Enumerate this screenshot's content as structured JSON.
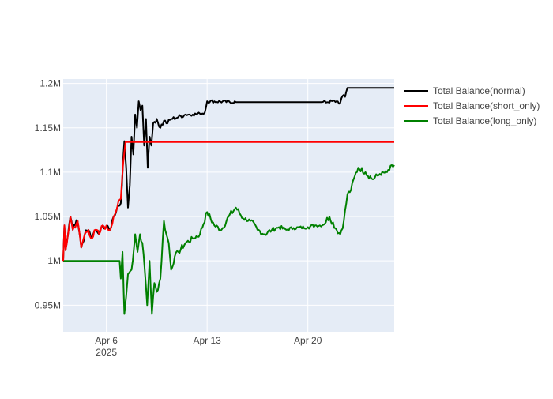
{
  "chart_data": {
    "type": "line",
    "title": "",
    "xlabel": "",
    "ylabel": "",
    "x_range": [
      "2025-04-03",
      "2025-04-26"
    ],
    "ylim": [
      920000,
      1205000
    ],
    "y_ticks": [
      {
        "value": 950000,
        "label": "0.95M"
      },
      {
        "value": 1000000,
        "label": "1M"
      },
      {
        "value": 1050000,
        "label": "1.05M"
      },
      {
        "value": 1100000,
        "label": "1.1M"
      },
      {
        "value": 1150000,
        "label": "1.15M"
      },
      {
        "value": 1200000,
        "label": "1.2M"
      }
    ],
    "x_ticks": [
      {
        "value": "2025-04-06",
        "label": "Apr 6",
        "sublabel": "2025"
      },
      {
        "value": "2025-04-13",
        "label": "Apr 13",
        "sublabel": ""
      },
      {
        "value": "2025-04-20",
        "label": "Apr 20",
        "sublabel": ""
      }
    ],
    "grid": true,
    "legend_position": "right",
    "colors": {
      "plot_bg": "#E5ECF6",
      "grid": "#ffffff",
      "tick_text": "#444444"
    },
    "series": [
      {
        "name": "Total Balance(normal)",
        "color": "#000000",
        "points": [
          [
            "2025-04-03 00:00",
            1000000
          ],
          [
            "2025-04-03 02:00",
            1040000
          ],
          [
            "2025-04-03 04:00",
            1012000
          ],
          [
            "2025-04-03 08:00",
            1030000
          ],
          [
            "2025-04-03 12:00",
            1050000
          ],
          [
            "2025-04-03 16:00",
            1035000
          ],
          [
            "2025-04-04 00:00",
            1045000
          ],
          [
            "2025-04-04 06:00",
            1015000
          ],
          [
            "2025-04-04 12:00",
            1030000
          ],
          [
            "2025-04-04 18:00",
            1035000
          ],
          [
            "2025-04-05 00:00",
            1025000
          ],
          [
            "2025-04-05 06:00",
            1035000
          ],
          [
            "2025-04-05 12:00",
            1030000
          ],
          [
            "2025-04-05 18:00",
            1040000
          ],
          [
            "2025-04-06 06:00",
            1035000
          ],
          [
            "2025-04-06 12:00",
            1050000
          ],
          [
            "2025-04-06 18:00",
            1060000
          ],
          [
            "2025-04-07 00:00",
            1065000
          ],
          [
            "2025-04-07 06:00",
            1135000
          ],
          [
            "2025-04-07 09:00",
            1105000
          ],
          [
            "2025-04-07 12:00",
            1060000
          ],
          [
            "2025-04-07 15:00",
            1085000
          ],
          [
            "2025-04-07 18:00",
            1140000
          ],
          [
            "2025-04-07 21:00",
            1120000
          ],
          [
            "2025-04-08 00:00",
            1165000
          ],
          [
            "2025-04-08 03:00",
            1150000
          ],
          [
            "2025-04-08 06:00",
            1180000
          ],
          [
            "2025-04-08 09:00",
            1170000
          ],
          [
            "2025-04-08 12:00",
            1175000
          ],
          [
            "2025-04-08 15:00",
            1130000
          ],
          [
            "2025-04-08 18:00",
            1160000
          ],
          [
            "2025-04-08 21:00",
            1105000
          ],
          [
            "2025-04-09 00:00",
            1140000
          ],
          [
            "2025-04-09 03:00",
            1130000
          ],
          [
            "2025-04-09 06:00",
            1155000
          ],
          [
            "2025-04-09 12:00",
            1160000
          ],
          [
            "2025-04-09 18:00",
            1150000
          ],
          [
            "2025-04-10 00:00",
            1158000
          ],
          [
            "2025-04-10 06:00",
            1155000
          ],
          [
            "2025-04-10 12:00",
            1160000
          ],
          [
            "2025-04-11 00:00",
            1162000
          ],
          [
            "2025-04-11 12:00",
            1165000
          ],
          [
            "2025-04-12 00:00",
            1165000
          ],
          [
            "2025-04-12 12:00",
            1166000
          ],
          [
            "2025-04-12 20:00",
            1167000
          ],
          [
            "2025-04-13 00:00",
            1180000
          ],
          [
            "2025-04-15 00:00",
            1179000
          ],
          [
            "2025-04-18 00:00",
            1179000
          ],
          [
            "2025-04-21 00:00",
            1179000
          ],
          [
            "2025-04-22 00:00",
            1180000
          ],
          [
            "2025-04-22 06:00",
            1178000
          ],
          [
            "2025-04-22 10:00",
            1186000
          ],
          [
            "2025-04-22 14:00",
            1185000
          ],
          [
            "2025-04-22 18:00",
            1195000
          ],
          [
            "2025-04-26 00:00",
            1195000
          ]
        ]
      },
      {
        "name": "Total Balance(short_only)",
        "color": "#ff0000",
        "points": [
          [
            "2025-04-03 00:00",
            1000000
          ],
          [
            "2025-04-03 02:00",
            1040000
          ],
          [
            "2025-04-03 04:00",
            1012000
          ],
          [
            "2025-04-03 08:00",
            1030000
          ],
          [
            "2025-04-03 12:00",
            1050000
          ],
          [
            "2025-04-03 16:00",
            1035000
          ],
          [
            "2025-04-04 00:00",
            1045000
          ],
          [
            "2025-04-04 06:00",
            1015000
          ],
          [
            "2025-04-04 12:00",
            1030000
          ],
          [
            "2025-04-04 18:00",
            1035000
          ],
          [
            "2025-04-05 00:00",
            1025000
          ],
          [
            "2025-04-05 06:00",
            1035000
          ],
          [
            "2025-04-05 12:00",
            1030000
          ],
          [
            "2025-04-05 18:00",
            1040000
          ],
          [
            "2025-04-06 06:00",
            1035000
          ],
          [
            "2025-04-06 12:00",
            1050000
          ],
          [
            "2025-04-06 18:00",
            1060000
          ],
          [
            "2025-04-07 00:00",
            1070000
          ],
          [
            "2025-04-07 04:00",
            1110000
          ],
          [
            "2025-04-07 08:00",
            1134000
          ],
          [
            "2025-04-26 00:00",
            1134000
          ]
        ]
      },
      {
        "name": "Total Balance(long_only)",
        "color": "#008000",
        "points": [
          [
            "2025-04-03 00:00",
            1000000
          ],
          [
            "2025-04-06 22:00",
            1000000
          ],
          [
            "2025-04-07 00:00",
            980000
          ],
          [
            "2025-04-07 03:00",
            1010000
          ],
          [
            "2025-04-07 06:00",
            940000
          ],
          [
            "2025-04-07 09:00",
            960000
          ],
          [
            "2025-04-07 12:00",
            985000
          ],
          [
            "2025-04-07 18:00",
            990000
          ],
          [
            "2025-04-08 00:00",
            1030000
          ],
          [
            "2025-04-08 04:00",
            1010000
          ],
          [
            "2025-04-08 08:00",
            1030000
          ],
          [
            "2025-04-08 12:00",
            1020000
          ],
          [
            "2025-04-08 16:00",
            990000
          ],
          [
            "2025-04-08 20:00",
            950000
          ],
          [
            "2025-04-09 00:00",
            1000000
          ],
          [
            "2025-04-09 04:00",
            940000
          ],
          [
            "2025-04-09 08:00",
            975000
          ],
          [
            "2025-04-09 12:00",
            965000
          ],
          [
            "2025-04-09 18:00",
            980000
          ],
          [
            "2025-04-10 00:00",
            1045000
          ],
          [
            "2025-04-10 04:00",
            1030000
          ],
          [
            "2025-04-10 08:00",
            1020000
          ],
          [
            "2025-04-10 12:00",
            990000
          ],
          [
            "2025-04-10 18:00",
            1005000
          ],
          [
            "2025-04-11 00:00",
            1010000
          ],
          [
            "2025-04-11 12:00",
            1020000
          ],
          [
            "2025-04-12 00:00",
            1025000
          ],
          [
            "2025-04-12 12:00",
            1030000
          ],
          [
            "2025-04-13 00:00",
            1055000
          ],
          [
            "2025-04-13 12:00",
            1040000
          ],
          [
            "2025-04-14 00:00",
            1035000
          ],
          [
            "2025-04-14 12:00",
            1050000
          ],
          [
            "2025-04-15 00:00",
            1060000
          ],
          [
            "2025-04-15 12:00",
            1048000
          ],
          [
            "2025-04-16 00:00",
            1045000
          ],
          [
            "2025-04-16 12:00",
            1035000
          ],
          [
            "2025-04-17 00:00",
            1030000
          ],
          [
            "2025-04-17 12:00",
            1035000
          ],
          [
            "2025-04-18 00:00",
            1038000
          ],
          [
            "2025-04-18 12:00",
            1035000
          ],
          [
            "2025-04-19 00:00",
            1037000
          ],
          [
            "2025-04-20 00:00",
            1038000
          ],
          [
            "2025-04-20 12:00",
            1040000
          ],
          [
            "2025-04-21 00:00",
            1040000
          ],
          [
            "2025-04-21 12:00",
            1050000
          ],
          [
            "2025-04-22 00:00",
            1035000
          ],
          [
            "2025-04-22 06:00",
            1030000
          ],
          [
            "2025-04-22 12:00",
            1045000
          ],
          [
            "2025-04-22 18:00",
            1075000
          ],
          [
            "2025-04-23 00:00",
            1080000
          ],
          [
            "2025-04-23 06:00",
            1095000
          ],
          [
            "2025-04-23 12:00",
            1105000
          ],
          [
            "2025-04-24 00:00",
            1100000
          ],
          [
            "2025-04-24 12:00",
            1092000
          ],
          [
            "2025-04-25 00:00",
            1098000
          ],
          [
            "2025-04-25 12:00",
            1100000
          ],
          [
            "2025-04-26 00:00",
            1108000
          ]
        ]
      }
    ]
  }
}
